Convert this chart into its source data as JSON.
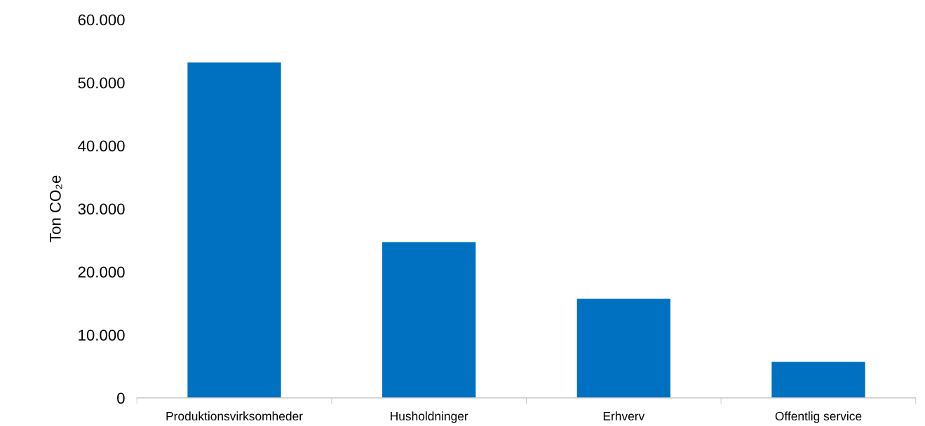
{
  "chart_data": {
    "type": "bar",
    "ylabel": "Ton CO₂e",
    "categories": [
      "Produktionsvirksomheder",
      "Husholdninger",
      "Erhverv",
      "Offentlig service"
    ],
    "values": [
      53200,
      24700,
      15700,
      5700
    ],
    "color": "#0070c0",
    "ylim": [
      0,
      60000
    ],
    "yticks": [
      {
        "value": 0,
        "label": "0"
      },
      {
        "value": 10000,
        "label": "10.000"
      },
      {
        "value": 20000,
        "label": "20.000"
      },
      {
        "value": 30000,
        "label": "30.000"
      },
      {
        "value": 40000,
        "label": "40.000"
      },
      {
        "value": 50000,
        "label": "50.000"
      },
      {
        "value": 60000,
        "label": "60.000"
      }
    ],
    "grid": false,
    "legend": false
  }
}
